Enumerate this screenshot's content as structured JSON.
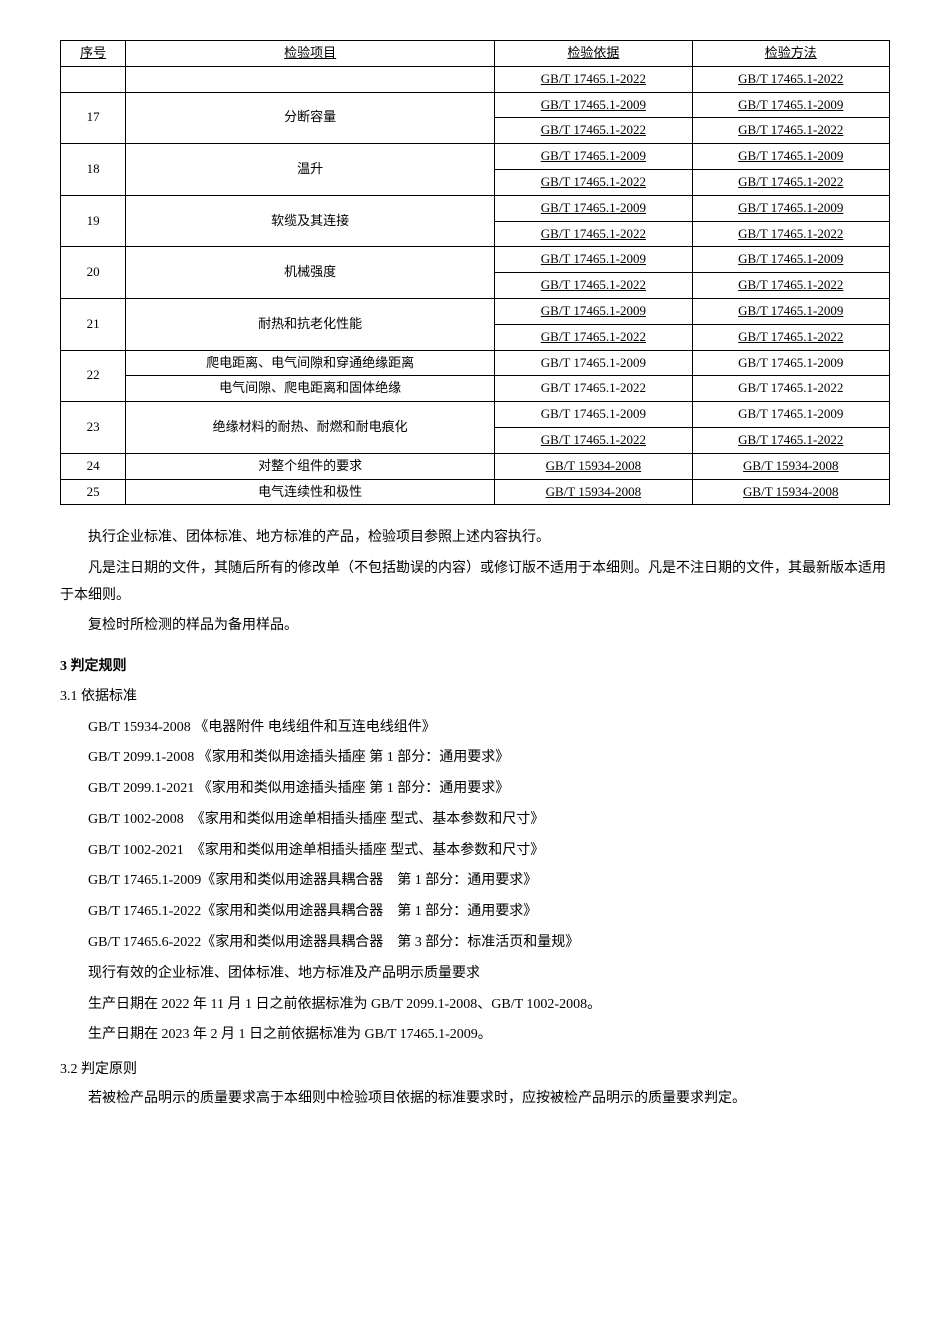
{
  "table": {
    "headers": [
      "序号",
      "检验项目",
      "检验依据",
      "检验方法"
    ],
    "rows": [
      {
        "seq": "",
        "item": "",
        "basis": [
          "GB/T 17465.1-2022"
        ],
        "method": [
          "GB/T 17465.1-2022"
        ]
      },
      {
        "seq": "17",
        "item": "分断容量",
        "basis": [
          "GB/T 17465.1-2009",
          "GB/T 17465.1-2022"
        ],
        "method": [
          "GB/T 17465.1-2009",
          "GB/T 17465.1-2022"
        ]
      },
      {
        "seq": "18",
        "item": "温升",
        "basis": [
          "GB/T 17465.1-2009",
          "GB/T 17465.1-2022"
        ],
        "method": [
          "GB/T 17465.1-2009",
          "GB/T 17465.1-2022"
        ]
      },
      {
        "seq": "19",
        "item": "软缆及其连接",
        "basis": [
          "GB/T 17465.1-2009",
          "GB/T 17465.1-2022"
        ],
        "method": [
          "GB/T 17465.1-2009",
          "GB/T 17465.1-2022"
        ]
      },
      {
        "seq": "20",
        "item": "机械强度",
        "basis": [
          "GB/T 17465.1-2009",
          "GB/T 17465.1-2022"
        ],
        "method": [
          "GB/T 17465.1-2009",
          "GB/T 17465.1-2022"
        ]
      },
      {
        "seq": "21",
        "item": "耐热和抗老化性能",
        "basis": [
          "GB/T 17465.1-2009",
          "GB/T 17465.1-2022"
        ],
        "method": [
          "GB/T 17465.1-2009",
          "GB/T 17465.1-2022"
        ]
      },
      {
        "seq": "22",
        "items": [
          {
            "item": "爬电距离、电气间隙和穿通绝缘距离",
            "basis": [
              "GB/T 17465.1-2009"
            ],
            "method": [
              "GB/T 17465.1-2009"
            ]
          },
          {
            "item": "电气间隙、爬电距离和固体绝缘",
            "basis": [
              "GB/T 17465.1-2022"
            ],
            "method": [
              "GB/T 17465.1-2022"
            ]
          }
        ]
      },
      {
        "seq": "23",
        "item": "绝缘材料的耐热、耐燃和耐电痕化",
        "basis": [
          "GB/T 17465.1-2009",
          "GB/T 17465.1-2022"
        ],
        "method": [
          "GB/T 17465.1-2009",
          "GB/T 17465.1-2022"
        ]
      },
      {
        "seq": "24",
        "item": "对整个组件的要求",
        "basis": [
          "GB/T 15934-2008"
        ],
        "method": [
          "GB/T 15934-2008"
        ]
      },
      {
        "seq": "25",
        "item": "电气连续性和极性",
        "basis": [
          "GB/T 15934-2008"
        ],
        "method": [
          "GB/T 15934-2008"
        ]
      }
    ]
  },
  "paragraphs": {
    "p1": "执行企业标准、团体标准、地方标准的产品，检验项目参照上述内容执行。",
    "p2": "凡是注日期的文件，其随后所有的修改单（不包括勘误的内容）或修订版不适用于本细则。凡是不注日期的文件，其最新版本适用于本细则。",
    "p3": "复检时所检测的样品为备用样品。"
  },
  "section3": {
    "heading": "3 判定规则",
    "sub1": {
      "heading": "3.1 依据标准",
      "standards": [
        "GB/T 15934-2008 《电器附件 电线组件和互连电线组件》",
        "GB/T 2099.1-2008 《家用和类似用途插头插座 第 1 部分：通用要求》",
        "GB/T 2099.1-2021 《家用和类似用途插头插座 第 1 部分：通用要求》",
        "GB/T 1002-2008　《家用和类似用途单相插头插座 型式、基本参数和尺寸》",
        "GB/T 1002-2021　《家用和类似用途单相插头插座 型式、基本参数和尺寸》",
        "GB/T 17465.1-2009《家用和类似用途器具耦合器　第 1 部分：通用要求》",
        "GB/T 17465.1-2022《家用和类似用途器具耦合器　第 1 部分：通用要求》",
        "GB/T 17465.6-2022《家用和类似用途器具耦合器　第 3 部分：标准活页和量规》",
        "现行有效的企业标准、团体标准、地方标准及产品明示质量要求",
        "生产日期在 2022 年 11 月 1 日之前依据标准为 GB/T 2099.1-2008、GB/T 1002-2008。",
        "生产日期在 2023 年 2 月 1 日之前依据标准为 GB/T 17465.1-2009。"
      ]
    },
    "sub2": {
      "heading": "3.2 判定原则",
      "text": "若被检产品明示的质量要求高于本细则中检验项目依据的标准要求时，应按被检产品明示的质量要求判定。"
    }
  }
}
